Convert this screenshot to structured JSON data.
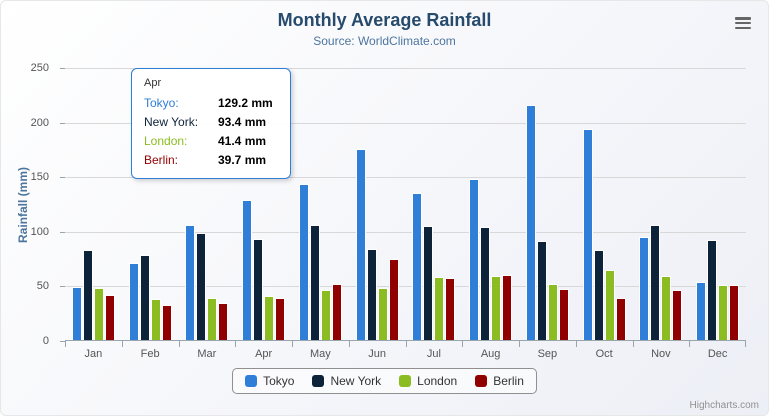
{
  "chart": {
    "credits": "Highcharts.com",
    "icons": {
      "menu": "hamburger-icon"
    }
  },
  "chart_data": {
    "type": "bar",
    "title": "Monthly Average Rainfall",
    "subtitle": "Source: WorldClimate.com",
    "categories": [
      "Jan",
      "Feb",
      "Mar",
      "Apr",
      "May",
      "Jun",
      "Jul",
      "Aug",
      "Sep",
      "Oct",
      "Nov",
      "Dec"
    ],
    "series": [
      {
        "name": "Tokyo",
        "color": "#2f7ed8",
        "values": [
          49.9,
          71.5,
          106.4,
          129.2,
          144.0,
          176.0,
          135.6,
          148.5,
          216.4,
          194.1,
          95.6,
          54.4
        ]
      },
      {
        "name": "New York",
        "color": "#0d233a",
        "values": [
          83.6,
          78.8,
          98.5,
          93.4,
          106.0,
          84.5,
          105.0,
          104.3,
          91.2,
          83.5,
          106.6,
          92.3
        ]
      },
      {
        "name": "London",
        "color": "#8bbc21",
        "values": [
          48.9,
          38.8,
          39.3,
          41.4,
          47.0,
          48.3,
          59.0,
          59.6,
          52.4,
          65.2,
          59.3,
          51.2
        ]
      },
      {
        "name": "Berlin",
        "color": "#910000",
        "values": [
          42.4,
          33.2,
          34.5,
          39.7,
          52.6,
          75.5,
          57.4,
          60.4,
          47.6,
          39.1,
          46.8,
          51.1
        ]
      }
    ],
    "xlabel": "",
    "ylabel": "Rainfall (mm)",
    "ylim": [
      0,
      250
    ],
    "yticks": [
      0,
      50,
      100,
      150,
      200,
      250
    ],
    "grid": "horizontal",
    "legend_position": "bottom"
  },
  "tooltip": {
    "header": "Apr",
    "border_color": "#2f7ed8",
    "rows": [
      {
        "name": "Tokyo",
        "value": "129.2 mm",
        "color": "#2f7ed8"
      },
      {
        "name": "New York",
        "value": "93.4 mm",
        "color": "#0d233a"
      },
      {
        "name": "London",
        "value": "41.4 mm",
        "color": "#8bbc21"
      },
      {
        "name": "Berlin",
        "value": "39.7 mm",
        "color": "#910000"
      }
    ]
  }
}
